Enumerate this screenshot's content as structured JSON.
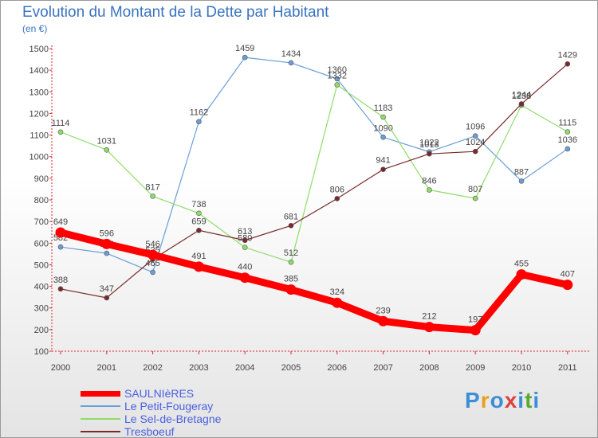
{
  "title": "Evolution du Montant de la Dette par Habitant",
  "subtitle": "(en €)",
  "logo": {
    "letters": [
      "P",
      "r",
      "o",
      "x",
      "i",
      "t",
      "i"
    ],
    "colors": [
      "#3a8fd8",
      "#e8a020",
      "#3a8fd8",
      "#e04040",
      "#3a8fd8",
      "#5aa830",
      "#3a8fd8"
    ]
  },
  "colors": {
    "SAULNIèRES": "#ff0000",
    "Le Petit-Fougeray": "#6a9ed6",
    "Le Sel-de-Bretagne": "#8fdc6a",
    "Tresboeuf": "#7a2a2a"
  },
  "chart_data": {
    "type": "line",
    "title": "Evolution du Montant de la Dette par Habitant",
    "subtitle": "(en €)",
    "xlabel": "",
    "ylabel": "",
    "x": [
      "2000",
      "2001",
      "2002",
      "2003",
      "2004",
      "2005",
      "2006",
      "2007",
      "2008",
      "2009",
      "2010",
      "2011"
    ],
    "ylim": [
      100,
      1500
    ],
    "yticks": [
      100,
      200,
      300,
      400,
      500,
      600,
      700,
      800,
      900,
      1000,
      1100,
      1200,
      1300,
      1400,
      1500
    ],
    "grid": false,
    "legend_position": "bottom-left",
    "series": [
      {
        "name": "SAULNIèRES",
        "values": [
          649,
          596,
          546,
          491,
          440,
          385,
          324,
          239,
          212,
          197,
          455,
          407
        ]
      },
      {
        "name": "Le Petit-Fougeray",
        "values": [
          582,
          553,
          465,
          1162,
          1459,
          1434,
          1360,
          1090,
          1022,
          1096,
          887,
          1036
        ]
      },
      {
        "name": "Le Sel-de-Bretagne",
        "values": [
          1114,
          1031,
          817,
          738,
          580,
          512,
          1332,
          1183,
          846,
          807,
          1238,
          1115
        ]
      },
      {
        "name": "Tresboeuf",
        "values": [
          388,
          347,
          525,
          659,
          613,
          681,
          806,
          941,
          1013,
          1024,
          1244,
          1429
        ]
      }
    ]
  }
}
